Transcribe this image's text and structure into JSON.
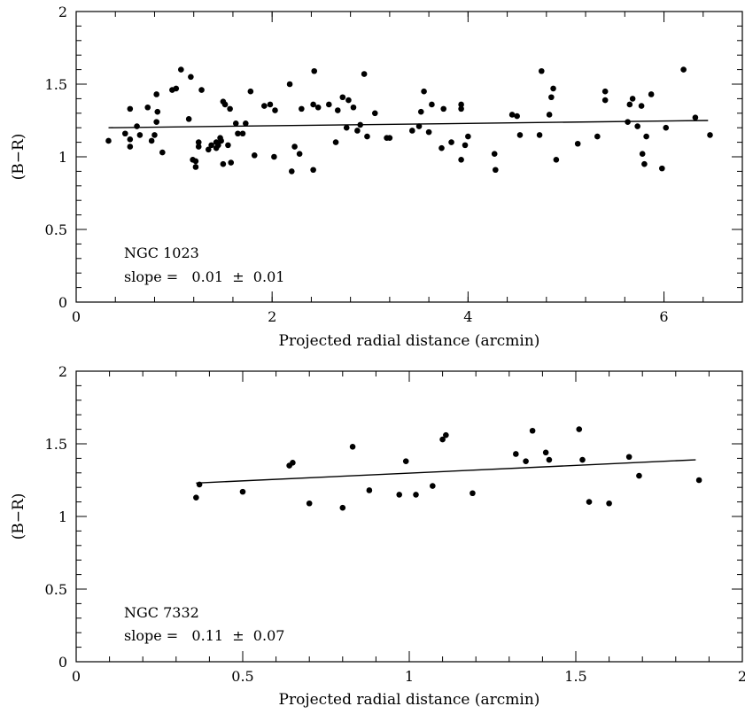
{
  "chart_data": [
    {
      "type": "scatter",
      "xlabel": "Projected radial distance (arcmin)",
      "ylabel": "(B−R)",
      "xlim": [
        0,
        6.8
      ],
      "ylim": [
        0,
        2
      ],
      "xticks": [
        0,
        2,
        4,
        6
      ],
      "xtick_labels": [
        "0",
        "2",
        "4",
        "6"
      ],
      "yticks": [
        0,
        0.5,
        1,
        1.5,
        2
      ],
      "ytick_labels": [
        "0",
        "0.5",
        "1",
        "1.5",
        "2"
      ],
      "annotation": {
        "name": "NGC 1023",
        "slope_text": "slope =   0.01  ±  0.01"
      },
      "fit_line": {
        "x": [
          0.33,
          6.45
        ],
        "y": [
          1.2,
          1.25
        ]
      },
      "points": [
        [
          0.33,
          1.11
        ],
        [
          0.5,
          1.16
        ],
        [
          0.55,
          1.33
        ],
        [
          0.55,
          1.07
        ],
        [
          0.55,
          1.12
        ],
        [
          0.62,
          1.21
        ],
        [
          0.65,
          1.15
        ],
        [
          0.73,
          1.34
        ],
        [
          0.77,
          1.11
        ],
        [
          0.8,
          1.15
        ],
        [
          0.82,
          1.24
        ],
        [
          0.82,
          1.43
        ],
        [
          0.83,
          1.31
        ],
        [
          0.88,
          1.03
        ],
        [
          0.98,
          1.46
        ],
        [
          1.02,
          1.47
        ],
        [
          1.07,
          1.6
        ],
        [
          1.15,
          1.26
        ],
        [
          1.17,
          1.55
        ],
        [
          1.19,
          0.98
        ],
        [
          1.22,
          0.97
        ],
        [
          1.22,
          0.93
        ],
        [
          1.25,
          1.07
        ],
        [
          1.25,
          1.1
        ],
        [
          1.28,
          1.46
        ],
        [
          1.35,
          1.05
        ],
        [
          1.38,
          1.08
        ],
        [
          1.43,
          1.06
        ],
        [
          1.43,
          1.1
        ],
        [
          1.45,
          1.08
        ],
        [
          1.47,
          1.13
        ],
        [
          1.48,
          1.11
        ],
        [
          1.5,
          0.95
        ],
        [
          1.5,
          1.38
        ],
        [
          1.52,
          1.36
        ],
        [
          1.55,
          1.08
        ],
        [
          1.57,
          1.33
        ],
        [
          1.58,
          0.96
        ],
        [
          1.63,
          1.23
        ],
        [
          1.65,
          1.16
        ],
        [
          1.7,
          1.16
        ],
        [
          1.73,
          1.23
        ],
        [
          1.78,
          1.45
        ],
        [
          1.82,
          1.01
        ],
        [
          1.92,
          1.35
        ],
        [
          1.98,
          1.36
        ],
        [
          2.02,
          1.0
        ],
        [
          2.03,
          1.32
        ],
        [
          2.18,
          1.5
        ],
        [
          2.2,
          0.9
        ],
        [
          2.23,
          1.07
        ],
        [
          2.28,
          1.02
        ],
        [
          2.3,
          1.33
        ],
        [
          2.42,
          0.91
        ],
        [
          2.42,
          1.36
        ],
        [
          2.43,
          1.59
        ],
        [
          2.47,
          1.34
        ],
        [
          2.58,
          1.36
        ],
        [
          2.65,
          1.1
        ],
        [
          2.67,
          1.32
        ],
        [
          2.72,
          1.41
        ],
        [
          2.76,
          1.2
        ],
        [
          2.78,
          1.39
        ],
        [
          2.83,
          1.34
        ],
        [
          2.87,
          1.18
        ],
        [
          2.9,
          1.22
        ],
        [
          2.94,
          1.57
        ],
        [
          2.97,
          1.14
        ],
        [
          3.05,
          1.3
        ],
        [
          3.17,
          1.13
        ],
        [
          3.2,
          1.13
        ],
        [
          3.43,
          1.18
        ],
        [
          3.5,
          1.21
        ],
        [
          3.52,
          1.31
        ],
        [
          3.55,
          1.45
        ],
        [
          3.6,
          1.17
        ],
        [
          3.63,
          1.36
        ],
        [
          3.73,
          1.06
        ],
        [
          3.75,
          1.33
        ],
        [
          3.83,
          1.1
        ],
        [
          3.93,
          1.36
        ],
        [
          3.93,
          1.33
        ],
        [
          3.93,
          0.98
        ],
        [
          3.97,
          1.08
        ],
        [
          4.0,
          1.14
        ],
        [
          4.27,
          1.02
        ],
        [
          4.28,
          0.91
        ],
        [
          4.45,
          1.29
        ],
        [
          4.5,
          1.28
        ],
        [
          4.53,
          1.15
        ],
        [
          4.73,
          1.15
        ],
        [
          4.75,
          1.59
        ],
        [
          4.83,
          1.29
        ],
        [
          4.85,
          1.41
        ],
        [
          4.87,
          1.47
        ],
        [
          4.9,
          0.98
        ],
        [
          5.12,
          1.09
        ],
        [
          5.32,
          1.14
        ],
        [
          5.4,
          1.45
        ],
        [
          5.4,
          1.39
        ],
        [
          5.63,
          1.24
        ],
        [
          5.65,
          1.36
        ],
        [
          5.68,
          1.4
        ],
        [
          5.73,
          1.21
        ],
        [
          5.77,
          1.35
        ],
        [
          5.78,
          1.02
        ],
        [
          5.8,
          0.95
        ],
        [
          5.82,
          1.14
        ],
        [
          5.87,
          1.43
        ],
        [
          5.98,
          0.92
        ],
        [
          6.02,
          1.2
        ],
        [
          6.2,
          1.6
        ],
        [
          6.32,
          1.27
        ],
        [
          6.47,
          1.15
        ]
      ]
    },
    {
      "type": "scatter",
      "xlabel": "Projected radial distance (arcmin)",
      "ylabel": "(B−R)",
      "xlim": [
        0,
        2
      ],
      "ylim": [
        0,
        2
      ],
      "xticks": [
        0,
        0.5,
        1,
        1.5,
        2
      ],
      "xtick_labels": [
        "0",
        "0.5",
        "1",
        "1.5",
        "2"
      ],
      "yticks": [
        0,
        0.5,
        1,
        1.5,
        2
      ],
      "ytick_labels": [
        "0",
        "0.5",
        "1",
        "1.5",
        "2"
      ],
      "annotation": {
        "name": "NGC 7332",
        "slope_text": "slope =   0.11  ±  0.07"
      },
      "fit_line": {
        "x": [
          0.36,
          1.86
        ],
        "y": [
          1.23,
          1.39
        ]
      },
      "points": [
        [
          0.36,
          1.13
        ],
        [
          0.37,
          1.22
        ],
        [
          0.5,
          1.17
        ],
        [
          0.64,
          1.35
        ],
        [
          0.65,
          1.37
        ],
        [
          0.7,
          1.09
        ],
        [
          0.8,
          1.06
        ],
        [
          0.83,
          1.48
        ],
        [
          0.88,
          1.18
        ],
        [
          0.97,
          1.15
        ],
        [
          0.99,
          1.38
        ],
        [
          1.02,
          1.15
        ],
        [
          1.07,
          1.21
        ],
        [
          1.1,
          1.53
        ],
        [
          1.11,
          1.56
        ],
        [
          1.19,
          1.16
        ],
        [
          1.32,
          1.43
        ],
        [
          1.35,
          1.38
        ],
        [
          1.37,
          1.59
        ],
        [
          1.41,
          1.44
        ],
        [
          1.42,
          1.39
        ],
        [
          1.51,
          1.6
        ],
        [
          1.52,
          1.39
        ],
        [
          1.54,
          1.1
        ],
        [
          1.6,
          1.09
        ],
        [
          1.66,
          1.41
        ],
        [
          1.69,
          1.28
        ],
        [
          1.87,
          1.25
        ]
      ]
    }
  ]
}
